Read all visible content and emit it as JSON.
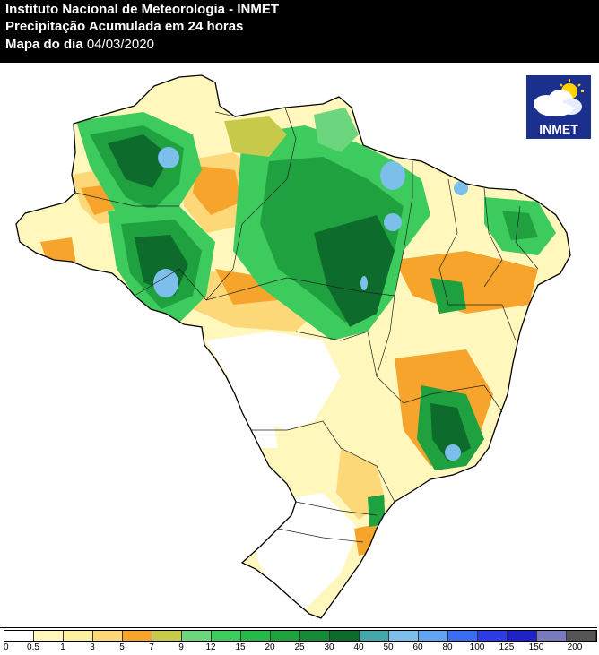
{
  "header": {
    "line1": "Instituto Nacional de Meteorologia - INMET",
    "line2": "Precipitação Acumulada em 24 horas",
    "line3_label": "Mapa do dia ",
    "date": "04/03/2020"
  },
  "logo": {
    "text": "INMET",
    "icon": "cloud-sun-icon"
  },
  "legend": {
    "labels": [
      "0",
      "0.5",
      "1",
      "3",
      "5",
      "7",
      "9",
      "12",
      "15",
      "20",
      "25",
      "30",
      "40",
      "50",
      "60",
      "80",
      "100",
      "125",
      "150",
      "200"
    ],
    "colors": [
      "#ffffff",
      "#fff7bc",
      "#fdf0a0",
      "#fdd879",
      "#f7a42d",
      "#c6c94a",
      "#6bd67d",
      "#3ecb5e",
      "#27b84a",
      "#1fa140",
      "#168a36",
      "#0d6b2c",
      "#46a7a8",
      "#7bbfea",
      "#63a4f0",
      "#3a6ef2",
      "#2c3de8",
      "#1f22c7",
      "#7a7abf",
      "#555555"
    ]
  },
  "colors": {
    "header_bg": "#000000",
    "land_dry": "#fff7bc",
    "moderate": "#f7a42d",
    "wet": "#3ecb5e",
    "very_wet": "#0d6b2c"
  }
}
